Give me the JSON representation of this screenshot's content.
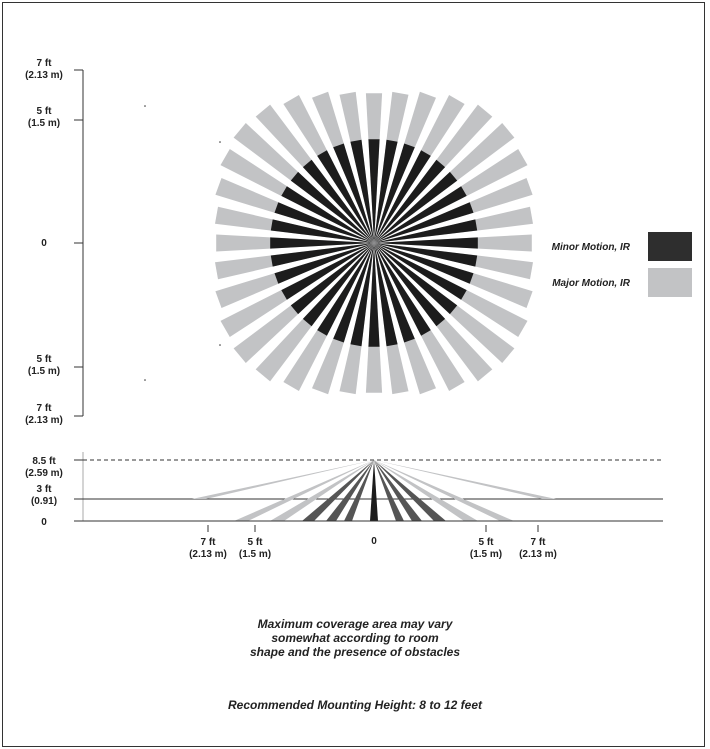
{
  "colors": {
    "minor": "#1c1c1c",
    "major": "#c2c3c5",
    "axis": "#333333"
  },
  "top_view": {
    "axis_labels": [
      {
        "line1": "7 ft",
        "line2": "(2.13 m)"
      },
      {
        "line1": "5 ft",
        "line2": "(1.5 m)"
      },
      {
        "line1": "0",
        "line2": ""
      },
      {
        "line1": "5 ft",
        "line2": "(1.5 m)"
      },
      {
        "line1": "7 ft",
        "line2": "(2.13 m)"
      }
    ],
    "beam_count": 36
  },
  "legend": [
    {
      "label": "Minor Motion, IR",
      "color": "#2e2e2e"
    },
    {
      "label": "Major Motion, IR",
      "color": "#c2c3c5"
    }
  ],
  "side_view": {
    "y_labels": [
      {
        "line1": "8.5 ft",
        "line2": "(2.59 m)"
      },
      {
        "line1": "3 ft",
        "line2": "(0.91)"
      },
      {
        "line1": "0",
        "line2": ""
      }
    ],
    "x_labels": [
      {
        "line1": "7 ft",
        "line2": "(2.13 m)"
      },
      {
        "line1": "5 ft",
        "line2": "(1.5 m)"
      },
      {
        "line1": "0",
        "line2": ""
      },
      {
        "line1": "5 ft",
        "line2": "(1.5 m)"
      },
      {
        "line1": "7 ft",
        "line2": "(2.13 m)"
      }
    ]
  },
  "caption": {
    "line1": "Maximum coverage area may vary",
    "line2": "somewhat according to room",
    "line3": "shape and the presence of obstacles",
    "mounting": "Recommended Mounting Height: 8 to 12 feet"
  }
}
